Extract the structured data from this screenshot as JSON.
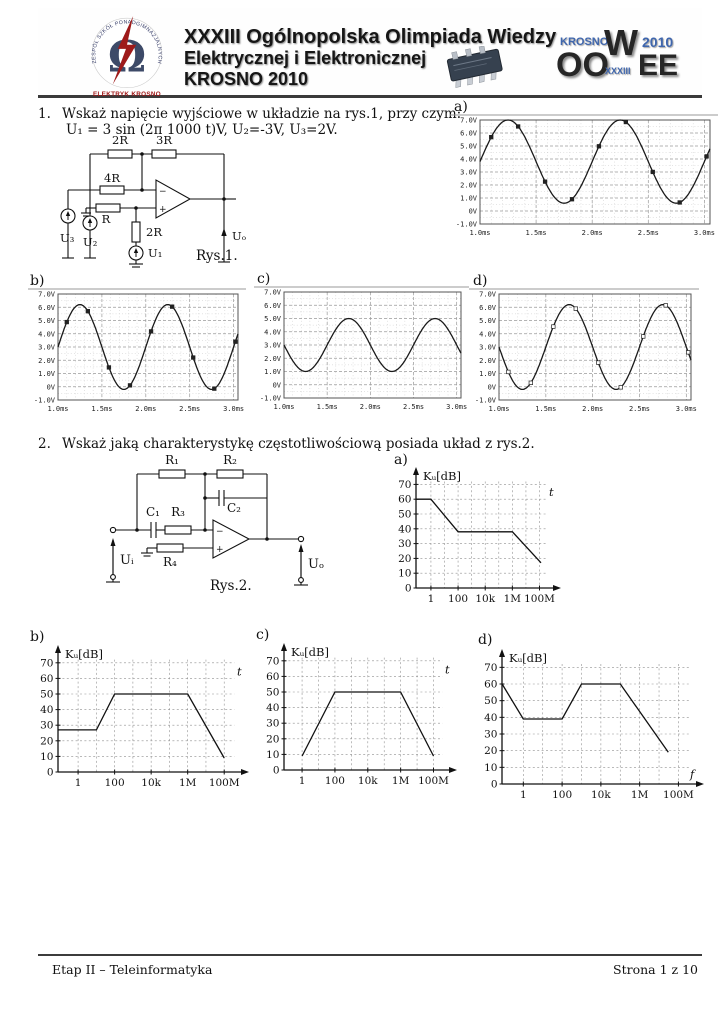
{
  "header": {
    "emblem": {
      "ring_text": "ZESPÓŁ SZKÓŁ PONADGIMNAZJALNYCH NR 5",
      "omega": "Ω",
      "caption": "ELEKTRYK KROSNO"
    },
    "title_line1": "XXXIII Ogólnopolska Olimpiada Wiedzy",
    "title_line2": "Elektrycznej i Elektronicznej",
    "title_line3": "KROSNO 2010",
    "oowee": {
      "krosno": "KROSNO",
      "w": "W",
      "year": "2010",
      "oo": "OO",
      "xxxiii": "XXXIII",
      "ee": "EE"
    },
    "colors": {
      "accent_blue": "#3f66ad",
      "letters_dark": "#262626",
      "emblem_red": "#a01818"
    }
  },
  "questions": [
    {
      "number": "1.",
      "text": "Wskaż  napięcie wyjściowe w układzie na rys.1, przy czym:",
      "text2": "U₁ = 3 sin (2π 1000 t)V, U₂=-3V, U₃=2V.",
      "figure_caption": "Rys.1."
    },
    {
      "number": "2.",
      "text": "Wskaż jaką charakterystykę częstotliwościową posiada układ z rys.2.",
      "figure_caption": "Rys.2."
    }
  ],
  "circuit1": {
    "labels": {
      "r_top1": "2R",
      "r_top2": "3R",
      "r_in1": "4R",
      "r_in2": "R",
      "r_vert": "2R",
      "u3": "U₃",
      "u2": "U₂",
      "u1": "U₁",
      "uo": "Uₒ",
      "minus": "−",
      "plus": "+"
    }
  },
  "circuit2": {
    "labels": {
      "r1": "R₁",
      "r2": "R₂",
      "c1": "C₁",
      "r3": "R₃",
      "c2": "C₂",
      "r4": "R₄",
      "ui": "Uᵢ",
      "uo": "Uₒ",
      "minus": "−",
      "plus": "+"
    }
  },
  "chart_data": [
    {
      "id": "q1a",
      "kind": "sine",
      "type": "line",
      "panel": "a)",
      "xlim_ms": [
        1.0,
        3.05
      ],
      "ylim_v": [
        -1,
        7
      ],
      "x_ticks_ms": [
        1.0,
        1.5,
        2.0,
        2.5,
        3.0
      ],
      "x_tick_labels": [
        "1.0ms",
        "1.5ms",
        "2.0ms",
        "2.5ms",
        "3.0ms"
      ],
      "y_ticks_v": [
        -1,
        0,
        1,
        2,
        3,
        4,
        5,
        6,
        7
      ],
      "y_tick_labels": [
        "-1.0V",
        "0V",
        "1.0V",
        "2.0V",
        "3.0V",
        "4.0V",
        "5.0V",
        "6.0V",
        "7.0V"
      ],
      "waveform": {
        "offset_v": 3.8,
        "amplitude_v": 3.2,
        "period_ms": 1.0,
        "sign": 1,
        "equation": "u(t) = 3.8 + 3.2·sin(2π·1000·t) V"
      },
      "markers": true,
      "marker_style": "filled"
    },
    {
      "id": "q1b",
      "kind": "sine",
      "type": "line",
      "panel": "b)",
      "xlim_ms": [
        1.0,
        3.05
      ],
      "ylim_v": [
        -1,
        7
      ],
      "x_ticks_ms": [
        1.0,
        1.5,
        2.0,
        2.5,
        3.0
      ],
      "x_tick_labels": [
        "1.0ms",
        "1.5ms",
        "2.0ms",
        "2.5ms",
        "3.0ms"
      ],
      "y_ticks_v": [
        -1,
        0,
        1,
        2,
        3,
        4,
        5,
        6,
        7
      ],
      "y_tick_labels": [
        "-1.0V",
        "0V",
        "1.0V",
        "2.0V",
        "3.0V",
        "4.0V",
        "5.0V",
        "6.0V",
        "7.0V"
      ],
      "waveform": {
        "offset_v": 3.0,
        "amplitude_v": 3.2,
        "period_ms": 1.0,
        "sign": 1,
        "equation": "u(t) = 3.0 + 3.2·sin(2π·1000·t) V"
      },
      "markers": true,
      "marker_style": "filled"
    },
    {
      "id": "q1c",
      "kind": "sine",
      "type": "line",
      "panel": "c)",
      "xlim_ms": [
        1.0,
        3.05
      ],
      "ylim_v": [
        -1,
        7
      ],
      "x_ticks_ms": [
        1.0,
        1.5,
        2.0,
        2.5,
        3.0
      ],
      "x_tick_labels": [
        "1.0ms",
        "1.5ms",
        "2.0ms",
        "2.5ms",
        "3.0ms"
      ],
      "y_ticks_v": [
        -1,
        0,
        1,
        2,
        3,
        4,
        5,
        6,
        7
      ],
      "y_tick_labels": [
        "-1.0V",
        "0V",
        "1.0V",
        "2.0V",
        "3.0V",
        "4.0V",
        "5.0V",
        "6.0V",
        "7.0V"
      ],
      "waveform": {
        "offset_v": 3.0,
        "amplitude_v": 2.0,
        "period_ms": 1.0,
        "sign": -1,
        "equation": "u(t) = 3.0 − 2.0·sin(2π·1000·t) V"
      },
      "markers": false,
      "marker_style": "none"
    },
    {
      "id": "q1d",
      "kind": "sine",
      "type": "line",
      "panel": "d)",
      "xlim_ms": [
        1.0,
        3.05
      ],
      "ylim_v": [
        -1,
        7
      ],
      "x_ticks_ms": [
        1.0,
        1.5,
        2.0,
        2.5,
        3.0
      ],
      "x_tick_labels": [
        "1.0ms",
        "1.5ms",
        "2.0ms",
        "2.5ms",
        "3.0ms"
      ],
      "y_ticks_v": [
        -1,
        0,
        1,
        2,
        3,
        4,
        5,
        6,
        7
      ],
      "y_tick_labels": [
        "-1.0V",
        "0V",
        "1.0V",
        "2.0V",
        "3.0V",
        "4.0V",
        "5.0V",
        "6.0V",
        "7.0V"
      ],
      "waveform": {
        "offset_v": 3.0,
        "amplitude_v": 3.2,
        "period_ms": 1.0,
        "sign": -1,
        "equation": "u(t) = 3.0 − 3.2·sin(2π·1000·t) V"
      },
      "markers": true,
      "marker_style": "open"
    },
    {
      "id": "q2a",
      "kind": "bode",
      "type": "line",
      "panel": "a)",
      "ylabel": "Kᵤ[dB]",
      "xlabel": "t",
      "xlabel_pos": "top-right",
      "ylim_db": [
        0,
        75
      ],
      "y_ticks_db": [
        0,
        10,
        20,
        30,
        40,
        50,
        60,
        70
      ],
      "x_decade_labels": [
        [
          "1",
          0
        ],
        [
          "100",
          2
        ],
        [
          "10k",
          4
        ],
        [
          "1M",
          6
        ],
        [
          "100M",
          8
        ]
      ],
      "points_f_hz_db": [
        [
          0.08,
          60
        ],
        [
          1,
          60
        ],
        [
          100,
          38
        ],
        [
          1000000,
          38
        ],
        [
          130000000,
          17
        ]
      ]
    },
    {
      "id": "q2b",
      "kind": "bode",
      "type": "line",
      "panel": "b)",
      "ylabel": "Kᵤ[dB]",
      "xlabel": "t",
      "xlabel_pos": "top-right",
      "ylim_db": [
        0,
        75
      ],
      "y_ticks_db": [
        0,
        10,
        20,
        30,
        40,
        50,
        60,
        70
      ],
      "x_decade_labels": [
        [
          "1",
          0
        ],
        [
          "100",
          2
        ],
        [
          "10k",
          4
        ],
        [
          "1M",
          6
        ],
        [
          "100M",
          8
        ]
      ],
      "points_f_hz_db": [
        [
          0.08,
          27
        ],
        [
          10,
          27
        ],
        [
          100,
          50
        ],
        [
          1000000,
          50
        ],
        [
          100000000,
          9
        ]
      ]
    },
    {
      "id": "q2c",
      "kind": "bode",
      "type": "line",
      "panel": "c)",
      "ylabel": "Kᵤ[dB]",
      "xlabel": "t",
      "xlabel_pos": "top-right",
      "ylim_db": [
        0,
        75
      ],
      "y_ticks_db": [
        0,
        10,
        20,
        30,
        40,
        50,
        60,
        70
      ],
      "x_decade_labels": [
        [
          "1",
          0
        ],
        [
          "100",
          2
        ],
        [
          "10k",
          4
        ],
        [
          "1M",
          6
        ],
        [
          "100M",
          8
        ]
      ],
      "points_f_hz_db": [
        [
          1,
          9
        ],
        [
          100,
          50
        ],
        [
          1000000,
          50
        ],
        [
          100000000,
          9
        ]
      ]
    },
    {
      "id": "q2d",
      "kind": "bode",
      "type": "line",
      "panel": "d)",
      "ylabel": "Kᵤ[dB]",
      "xlabel": "f",
      "xlabel_pos": "bottom-right",
      "ylim_db": [
        0,
        75
      ],
      "y_ticks_db": [
        0,
        10,
        20,
        30,
        40,
        50,
        60,
        70
      ],
      "x_decade_labels": [
        [
          "1",
          0
        ],
        [
          "100",
          2
        ],
        [
          "10k",
          4
        ],
        [
          "1M",
          6
        ],
        [
          "100M",
          8
        ]
      ],
      "points_f_hz_db": [
        [
          0.08,
          60
        ],
        [
          1,
          39
        ],
        [
          100,
          39
        ],
        [
          1000,
          60
        ],
        [
          100000,
          60
        ],
        [
          30000000,
          19
        ]
      ]
    }
  ],
  "footer": {
    "left": "Etap II – Teleinformatyka",
    "right": "Strona 1 z 10"
  }
}
